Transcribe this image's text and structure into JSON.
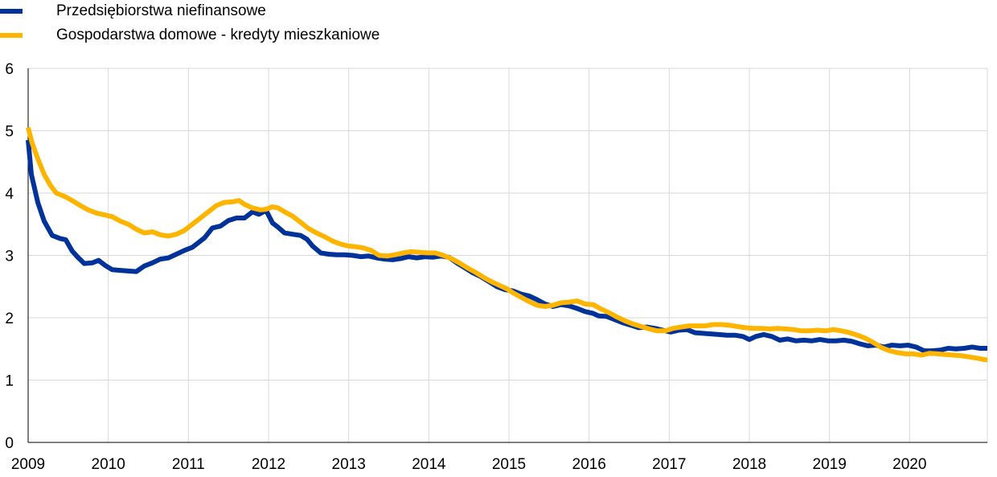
{
  "chart_data": {
    "type": "line",
    "title": "",
    "xlabel": "",
    "ylabel": "",
    "xlim": [
      2009.0,
      2020.97
    ],
    "ylim": [
      0,
      6
    ],
    "y_ticks": [
      "0",
      "1",
      "2",
      "3",
      "4",
      "5",
      "6"
    ],
    "x_ticks": [
      "2009",
      "2010",
      "2011",
      "2012",
      "2013",
      "2014",
      "2015",
      "2016",
      "2017",
      "2018",
      "2019",
      "2020"
    ],
    "grid": true,
    "legend_position": "top-left",
    "series": [
      {
        "name": "Przedsiębiorstwa niefinansowe",
        "color": "#003299",
        "points": [
          [
            2009.0,
            4.85
          ],
          [
            2009.04,
            4.3
          ],
          [
            2009.12,
            3.85
          ],
          [
            2009.2,
            3.55
          ],
          [
            2009.3,
            3.32
          ],
          [
            2009.4,
            3.27
          ],
          [
            2009.47,
            3.25
          ],
          [
            2009.55,
            3.07
          ],
          [
            2009.62,
            2.97
          ],
          [
            2009.7,
            2.87
          ],
          [
            2009.8,
            2.88
          ],
          [
            2009.88,
            2.92
          ],
          [
            2009.96,
            2.84
          ],
          [
            2010.05,
            2.77
          ],
          [
            2010.15,
            2.76
          ],
          [
            2010.25,
            2.75
          ],
          [
            2010.35,
            2.74
          ],
          [
            2010.45,
            2.83
          ],
          [
            2010.55,
            2.88
          ],
          [
            2010.65,
            2.94
          ],
          [
            2010.75,
            2.96
          ],
          [
            2010.85,
            3.02
          ],
          [
            2010.95,
            3.08
          ],
          [
            2011.05,
            3.13
          ],
          [
            2011.12,
            3.2
          ],
          [
            2011.2,
            3.28
          ],
          [
            2011.3,
            3.44
          ],
          [
            2011.4,
            3.47
          ],
          [
            2011.5,
            3.56
          ],
          [
            2011.6,
            3.6
          ],
          [
            2011.7,
            3.6
          ],
          [
            2011.8,
            3.7
          ],
          [
            2011.88,
            3.66
          ],
          [
            2011.97,
            3.72
          ],
          [
            2012.05,
            3.52
          ],
          [
            2012.12,
            3.45
          ],
          [
            2012.2,
            3.36
          ],
          [
            2012.3,
            3.34
          ],
          [
            2012.4,
            3.32
          ],
          [
            2012.48,
            3.26
          ],
          [
            2012.55,
            3.15
          ],
          [
            2012.65,
            3.04
          ],
          [
            2012.75,
            3.02
          ],
          [
            2012.85,
            3.01
          ],
          [
            2012.95,
            3.01
          ],
          [
            2013.05,
            3.0
          ],
          [
            2013.15,
            2.98
          ],
          [
            2013.25,
            2.99
          ],
          [
            2013.35,
            2.96
          ],
          [
            2013.45,
            2.94
          ],
          [
            2013.55,
            2.93
          ],
          [
            2013.65,
            2.95
          ],
          [
            2013.75,
            2.98
          ],
          [
            2013.85,
            2.96
          ],
          [
            2013.95,
            2.98
          ],
          [
            2014.05,
            2.97
          ],
          [
            2014.15,
            2.99
          ],
          [
            2014.25,
            2.97
          ],
          [
            2014.35,
            2.88
          ],
          [
            2014.45,
            2.8
          ],
          [
            2014.55,
            2.72
          ],
          [
            2014.65,
            2.66
          ],
          [
            2014.75,
            2.58
          ],
          [
            2014.85,
            2.5
          ],
          [
            2014.95,
            2.45
          ],
          [
            2015.05,
            2.43
          ],
          [
            2015.15,
            2.38
          ],
          [
            2015.25,
            2.35
          ],
          [
            2015.35,
            2.29
          ],
          [
            2015.45,
            2.22
          ],
          [
            2015.55,
            2.18
          ],
          [
            2015.65,
            2.21
          ],
          [
            2015.75,
            2.19
          ],
          [
            2015.85,
            2.15
          ],
          [
            2015.95,
            2.1
          ],
          [
            2016.05,
            2.07
          ],
          [
            2016.12,
            2.03
          ],
          [
            2016.22,
            2.02
          ],
          [
            2016.32,
            1.97
          ],
          [
            2016.42,
            1.92
          ],
          [
            2016.52,
            1.88
          ],
          [
            2016.62,
            1.84
          ],
          [
            2016.72,
            1.85
          ],
          [
            2016.82,
            1.83
          ],
          [
            2016.92,
            1.8
          ],
          [
            2017.02,
            1.77
          ],
          [
            2017.12,
            1.8
          ],
          [
            2017.22,
            1.81
          ],
          [
            2017.32,
            1.76
          ],
          [
            2017.42,
            1.75
          ],
          [
            2017.52,
            1.74
          ],
          [
            2017.62,
            1.73
          ],
          [
            2017.72,
            1.72
          ],
          [
            2017.82,
            1.72
          ],
          [
            2017.92,
            1.7
          ],
          [
            2018.0,
            1.65
          ],
          [
            2018.08,
            1.7
          ],
          [
            2018.18,
            1.73
          ],
          [
            2018.28,
            1.7
          ],
          [
            2018.38,
            1.64
          ],
          [
            2018.48,
            1.66
          ],
          [
            2018.58,
            1.63
          ],
          [
            2018.68,
            1.64
          ],
          [
            2018.78,
            1.63
          ],
          [
            2018.88,
            1.65
          ],
          [
            2018.98,
            1.63
          ],
          [
            2019.08,
            1.63
          ],
          [
            2019.18,
            1.64
          ],
          [
            2019.28,
            1.62
          ],
          [
            2019.38,
            1.58
          ],
          [
            2019.48,
            1.55
          ],
          [
            2019.58,
            1.56
          ],
          [
            2019.68,
            1.53
          ],
          [
            2019.78,
            1.56
          ],
          [
            2019.88,
            1.55
          ],
          [
            2019.98,
            1.56
          ],
          [
            2020.08,
            1.53
          ],
          [
            2020.18,
            1.47
          ],
          [
            2020.28,
            1.47
          ],
          [
            2020.38,
            1.48
          ],
          [
            2020.48,
            1.51
          ],
          [
            2020.58,
            1.5
          ],
          [
            2020.68,
            1.51
          ],
          [
            2020.78,
            1.53
          ],
          [
            2020.88,
            1.51
          ],
          [
            2020.97,
            1.51
          ]
        ]
      },
      {
        "name": "Gospodarstwa domowe - kredyty mieszkaniowe",
        "color": "#FFB400",
        "points": [
          [
            2009.0,
            5.05
          ],
          [
            2009.05,
            4.8
          ],
          [
            2009.12,
            4.55
          ],
          [
            2009.2,
            4.3
          ],
          [
            2009.28,
            4.12
          ],
          [
            2009.35,
            4.0
          ],
          [
            2009.45,
            3.95
          ],
          [
            2009.55,
            3.88
          ],
          [
            2009.65,
            3.8
          ],
          [
            2009.75,
            3.73
          ],
          [
            2009.85,
            3.68
          ],
          [
            2009.95,
            3.65
          ],
          [
            2010.05,
            3.62
          ],
          [
            2010.15,
            3.55
          ],
          [
            2010.25,
            3.5
          ],
          [
            2010.35,
            3.42
          ],
          [
            2010.45,
            3.36
          ],
          [
            2010.55,
            3.38
          ],
          [
            2010.65,
            3.33
          ],
          [
            2010.75,
            3.31
          ],
          [
            2010.85,
            3.34
          ],
          [
            2010.95,
            3.4
          ],
          [
            2011.05,
            3.5
          ],
          [
            2011.15,
            3.6
          ],
          [
            2011.25,
            3.7
          ],
          [
            2011.35,
            3.8
          ],
          [
            2011.45,
            3.85
          ],
          [
            2011.55,
            3.86
          ],
          [
            2011.63,
            3.88
          ],
          [
            2011.7,
            3.82
          ],
          [
            2011.8,
            3.76
          ],
          [
            2011.9,
            3.73
          ],
          [
            2011.97,
            3.74
          ],
          [
            2012.05,
            3.78
          ],
          [
            2012.12,
            3.76
          ],
          [
            2012.2,
            3.7
          ],
          [
            2012.3,
            3.63
          ],
          [
            2012.4,
            3.53
          ],
          [
            2012.5,
            3.43
          ],
          [
            2012.6,
            3.36
          ],
          [
            2012.7,
            3.3
          ],
          [
            2012.8,
            3.23
          ],
          [
            2012.9,
            3.18
          ],
          [
            2013.0,
            3.15
          ],
          [
            2013.08,
            3.14
          ],
          [
            2013.18,
            3.12
          ],
          [
            2013.28,
            3.08
          ],
          [
            2013.38,
            3.0
          ],
          [
            2013.48,
            2.99
          ],
          [
            2013.58,
            3.01
          ],
          [
            2013.68,
            3.04
          ],
          [
            2013.78,
            3.06
          ],
          [
            2013.88,
            3.05
          ],
          [
            2013.98,
            3.04
          ],
          [
            2014.08,
            3.04
          ],
          [
            2014.18,
            3.0
          ],
          [
            2014.28,
            2.95
          ],
          [
            2014.38,
            2.88
          ],
          [
            2014.48,
            2.8
          ],
          [
            2014.58,
            2.73
          ],
          [
            2014.68,
            2.65
          ],
          [
            2014.78,
            2.58
          ],
          [
            2014.88,
            2.52
          ],
          [
            2014.98,
            2.46
          ],
          [
            2015.05,
            2.4
          ],
          [
            2015.15,
            2.33
          ],
          [
            2015.25,
            2.26
          ],
          [
            2015.35,
            2.2
          ],
          [
            2015.45,
            2.18
          ],
          [
            2015.55,
            2.2
          ],
          [
            2015.65,
            2.24
          ],
          [
            2015.75,
            2.25
          ],
          [
            2015.85,
            2.27
          ],
          [
            2015.95,
            2.22
          ],
          [
            2016.05,
            2.21
          ],
          [
            2016.15,
            2.14
          ],
          [
            2016.25,
            2.08
          ],
          [
            2016.35,
            2.01
          ],
          [
            2016.45,
            1.95
          ],
          [
            2016.55,
            1.9
          ],
          [
            2016.65,
            1.86
          ],
          [
            2016.75,
            1.82
          ],
          [
            2016.85,
            1.79
          ],
          [
            2016.95,
            1.79
          ],
          [
            2017.05,
            1.83
          ],
          [
            2017.15,
            1.85
          ],
          [
            2017.25,
            1.87
          ],
          [
            2017.35,
            1.87
          ],
          [
            2017.45,
            1.87
          ],
          [
            2017.55,
            1.89
          ],
          [
            2017.65,
            1.89
          ],
          [
            2017.75,
            1.88
          ],
          [
            2017.85,
            1.86
          ],
          [
            2017.95,
            1.84
          ],
          [
            2018.05,
            1.83
          ],
          [
            2018.15,
            1.83
          ],
          [
            2018.25,
            1.82
          ],
          [
            2018.35,
            1.83
          ],
          [
            2018.45,
            1.82
          ],
          [
            2018.55,
            1.81
          ],
          [
            2018.65,
            1.79
          ],
          [
            2018.75,
            1.79
          ],
          [
            2018.85,
            1.8
          ],
          [
            2018.95,
            1.79
          ],
          [
            2019.05,
            1.81
          ],
          [
            2019.15,
            1.79
          ],
          [
            2019.25,
            1.76
          ],
          [
            2019.35,
            1.72
          ],
          [
            2019.45,
            1.67
          ],
          [
            2019.55,
            1.6
          ],
          [
            2019.65,
            1.52
          ],
          [
            2019.75,
            1.47
          ],
          [
            2019.85,
            1.44
          ],
          [
            2019.95,
            1.42
          ],
          [
            2020.05,
            1.42
          ],
          [
            2020.15,
            1.4
          ],
          [
            2020.25,
            1.43
          ],
          [
            2020.35,
            1.42
          ],
          [
            2020.45,
            1.41
          ],
          [
            2020.55,
            1.4
          ],
          [
            2020.65,
            1.39
          ],
          [
            2020.75,
            1.37
          ],
          [
            2020.85,
            1.35
          ],
          [
            2020.97,
            1.32
          ]
        ]
      }
    ]
  }
}
